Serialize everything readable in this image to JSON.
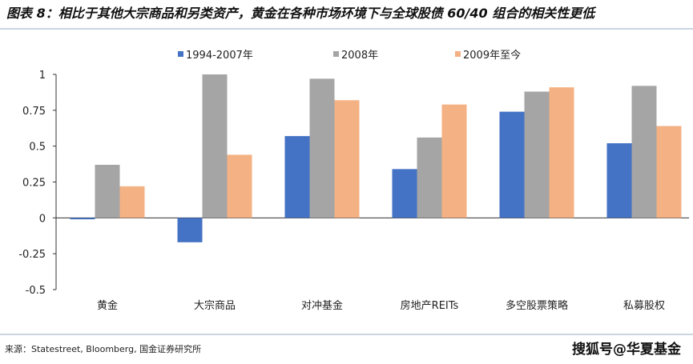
{
  "title": "图表 8：相比于其他大宗商品和另类资产，黄金在各种市场环境下与全球股债 60/40 组合的相关性更低",
  "source": "来源：Statestreet, Bloomberg, 国金证券研究所",
  "watermark": "搜狐号@华夏基金",
  "chart_data": {
    "type": "bar",
    "categories": [
      "黄金",
      "大宗商品",
      "对冲基金",
      "房地产REITs",
      "多空股票策略",
      "私募股权"
    ],
    "series": [
      {
        "name": "1994-2007年",
        "color": "#4472C4",
        "values": [
          -0.01,
          -0.17,
          0.57,
          0.34,
          0.74,
          0.52
        ]
      },
      {
        "name": "2008年",
        "color": "#A5A5A5",
        "values": [
          0.37,
          1.0,
          0.97,
          0.56,
          0.88,
          0.92
        ]
      },
      {
        "name": "2009年至今",
        "color": "#F4B183",
        "values": [
          0.22,
          0.44,
          0.82,
          0.79,
          0.91,
          0.64
        ]
      }
    ],
    "ylim": [
      -0.5,
      1
    ],
    "yticks": [
      -0.5,
      -0.25,
      0,
      0.25,
      0.5,
      0.75,
      1
    ],
    "ytick_labels": [
      "-0.5",
      "-0.25",
      "0",
      "0.25",
      "0.5",
      "0.75",
      "1"
    ],
    "legend_position": "top",
    "grid": false
  }
}
